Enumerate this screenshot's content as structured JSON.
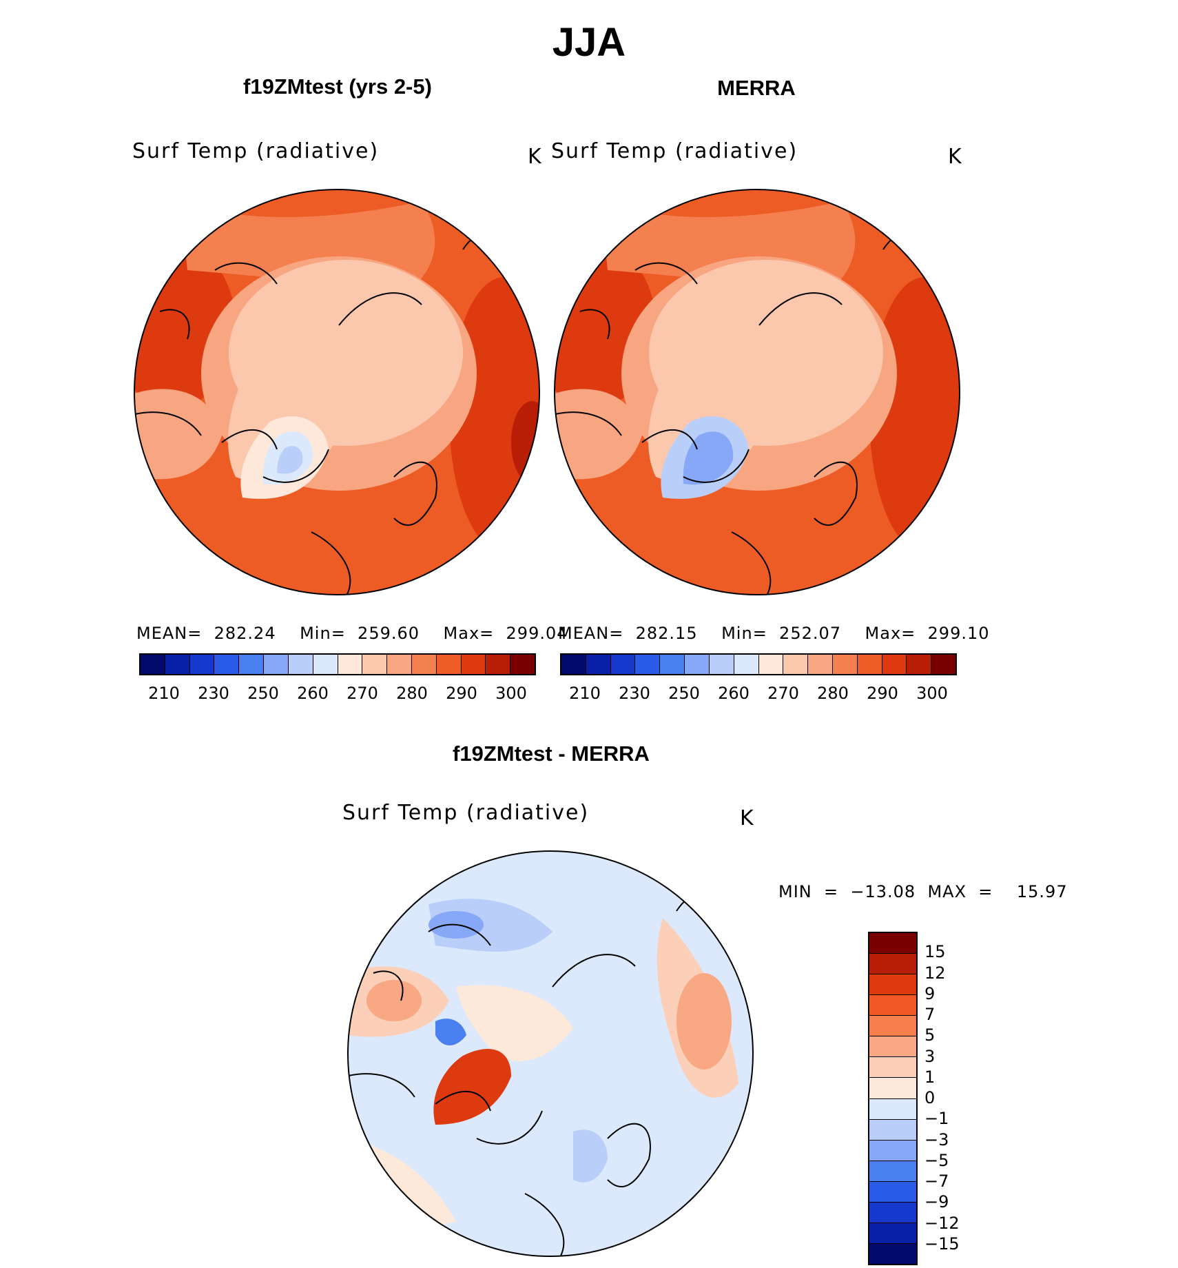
{
  "title": "JJA",
  "colors": {
    "abs_palette": [
      "#020a6c",
      "#0a1fa8",
      "#1638cc",
      "#2a5ce8",
      "#4a7ff0",
      "#86a8f6",
      "#b9cff9",
      "#dce9fc",
      "#fde8da",
      "#fcc8ad",
      "#f8a582",
      "#f5804f",
      "#ee5c26",
      "#dd3a10",
      "#b81e06",
      "#7a0000"
    ],
    "diff_palette": [
      "#7a0000",
      "#b81e06",
      "#dd3a10",
      "#f25826",
      "#f77e4d",
      "#f9a884",
      "#fcd0b8",
      "#fde9da",
      "#dce9fc",
      "#b9cff9",
      "#86a8f6",
      "#4a7ff0",
      "#2a5ce8",
      "#1638cc",
      "#0a1fa8",
      "#020a6c"
    ]
  },
  "panels": {
    "model": {
      "title": "f19ZMtest (yrs 2-5)",
      "variable": "Surf Temp (radiative)",
      "units": "K",
      "stats_line": "MEAN=  282.24    Min=  259.60    Max=  299.04",
      "colorbar_ticks": [
        "210",
        "230",
        "250",
        "260",
        "270",
        "280",
        "290",
        "300"
      ]
    },
    "obs": {
      "title": "MERRA",
      "variable": "Surf Temp (radiative)",
      "units": "K",
      "stats_line": "MEAN=  282.15    Min=  252.07    Max=  299.10",
      "colorbar_ticks": [
        "210",
        "230",
        "250",
        "260",
        "270",
        "280",
        "290",
        "300"
      ]
    },
    "diff": {
      "title": "f19ZMtest - MERRA",
      "variable": "Surf Temp (radiative)",
      "units": "K",
      "stats_line": "MIN  =  −13.08  MAX  =    15.97",
      "colorbar_ticks": [
        "15",
        "12",
        "9",
        "7",
        "5",
        "3",
        "1",
        "0",
        "−1",
        "−3",
        "−5",
        "−7",
        "−9",
        "−12",
        "−15"
      ]
    }
  }
}
